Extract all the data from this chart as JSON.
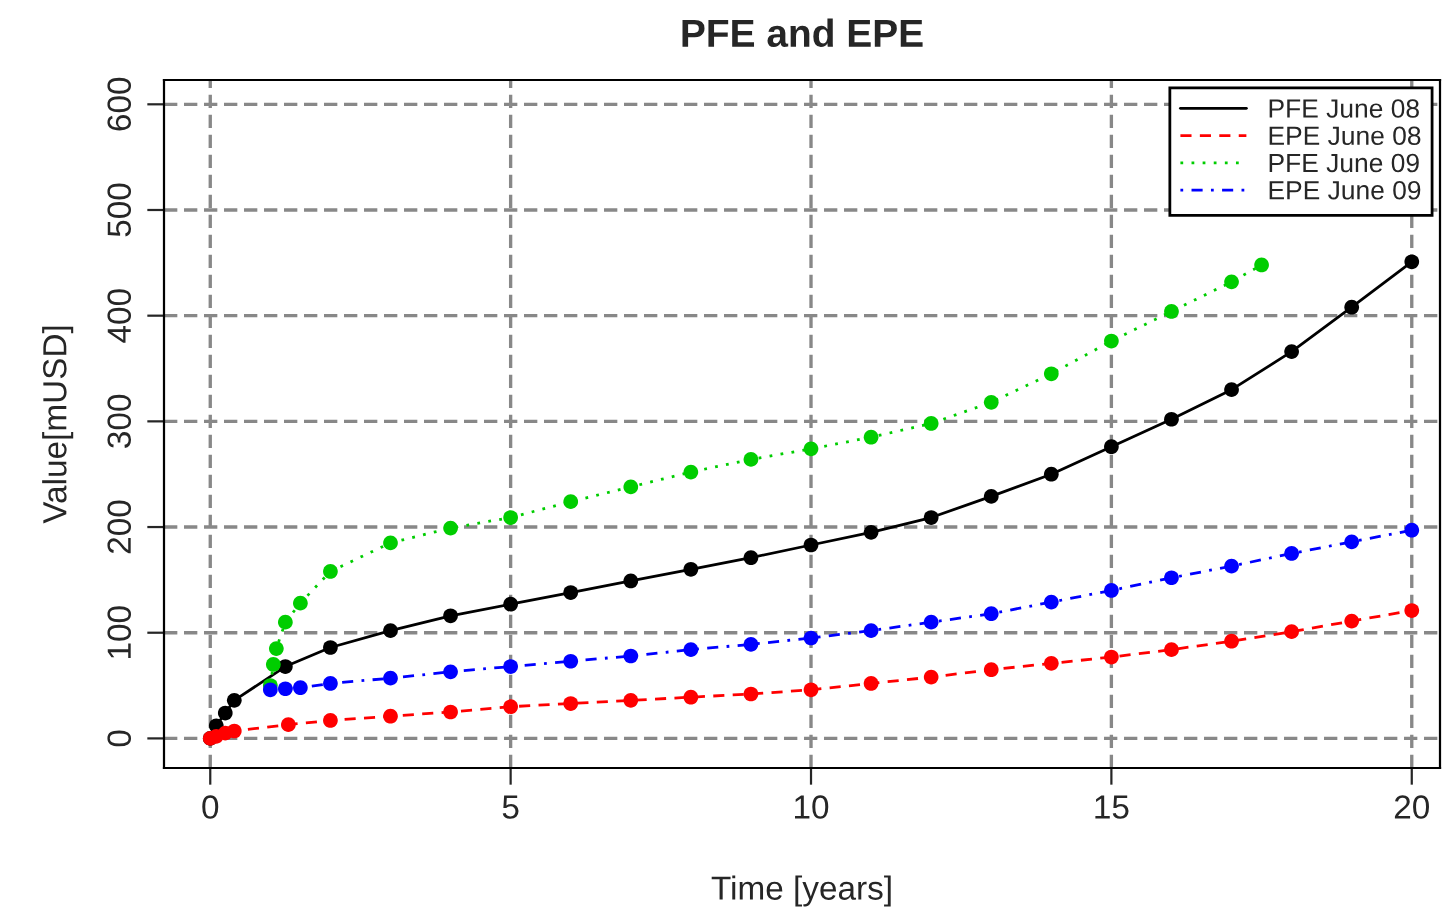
{
  "chart_data": {
    "type": "line",
    "title": "PFE and EPE",
    "xlabel": "Time [years]",
    "ylabel": "Value[mUSD]",
    "xlim": [
      -0.77,
      20.47
    ],
    "ylim": [
      -28,
      623
    ],
    "xticks": [
      0,
      5,
      10,
      15,
      20
    ],
    "yticks": [
      0,
      100,
      200,
      300,
      400,
      500,
      600
    ],
    "grid": true,
    "legend": "top right",
    "marker": "circle",
    "series": [
      {
        "name": "PFE June 08",
        "color": "#000000",
        "line_style": "solid",
        "x": [
          0,
          0.1,
          0.25,
          0.4,
          1.25,
          2,
          3,
          4,
          5,
          6,
          7,
          8,
          9,
          10,
          11,
          12,
          13,
          14,
          15,
          16,
          17,
          18,
          19,
          20
        ],
        "values": [
          0,
          12,
          24,
          36,
          68,
          86,
          102,
          116,
          127,
          138,
          149,
          160,
          171,
          183,
          195,
          209,
          229,
          250,
          276,
          302,
          330,
          366,
          408,
          451
        ]
      },
      {
        "name": "EPE June 08",
        "color": "#ff0000",
        "line_style": "dashed",
        "x": [
          0,
          0.1,
          0.25,
          0.4,
          1.3,
          2,
          3,
          4,
          5,
          6,
          7,
          8,
          9,
          10,
          11,
          12,
          13,
          14,
          15,
          16,
          17,
          18,
          19,
          20
        ],
        "values": [
          0,
          2,
          5,
          7,
          13,
          17,
          21,
          25,
          30,
          33,
          36,
          39,
          42,
          46,
          52,
          58,
          65,
          71,
          77,
          84,
          92,
          101,
          111,
          121
        ]
      },
      {
        "name": "PFE June 09",
        "color": "#00cd00",
        "line_style": "dotted",
        "x": [
          1,
          1.05,
          1.1,
          1.25,
          1.5,
          2,
          3,
          4,
          5,
          6,
          7,
          8,
          9,
          10,
          11,
          12,
          13,
          14,
          15,
          16,
          17,
          17.5
        ],
        "values": [
          50,
          70,
          85,
          110,
          128,
          158,
          185,
          199,
          209,
          224,
          238,
          252,
          264,
          274,
          285,
          298,
          318,
          345,
          376,
          404,
          432,
          448
        ]
      },
      {
        "name": "EPE June 09",
        "color": "#0000ff",
        "line_style": "dashdot",
        "x": [
          1,
          1.25,
          1.5,
          2,
          3,
          4,
          5,
          6,
          7,
          8,
          9,
          10,
          11,
          12,
          13,
          14,
          15,
          16,
          17,
          18,
          19,
          20
        ],
        "values": [
          46,
          47,
          48,
          52,
          57,
          63,
          68,
          73,
          78,
          84,
          89,
          95,
          102,
          110,
          118,
          129,
          140,
          152,
          163,
          175,
          186,
          197
        ]
      }
    ]
  }
}
